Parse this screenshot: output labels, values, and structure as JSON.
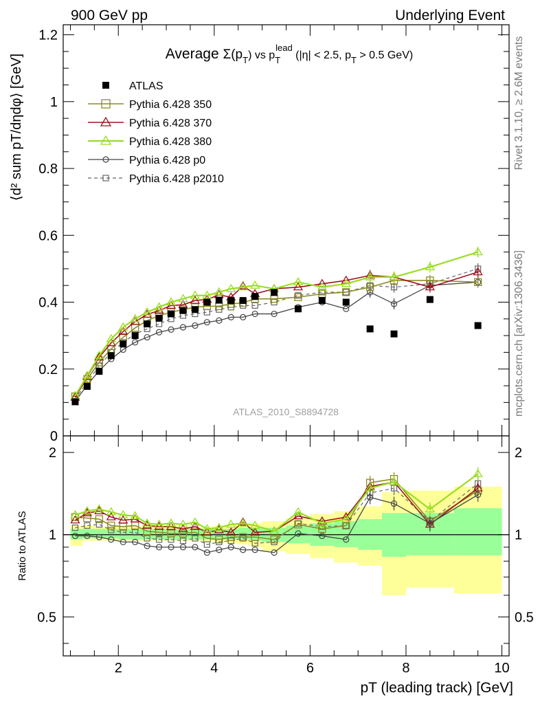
{
  "header": {
    "left": "900 GeV pp",
    "right": "Underlying Event"
  },
  "side_labels": {
    "rivet": "Rivet 3.1.10, ≥ 2.6M events",
    "mcplots": "mcplots.cern.ch [arXiv:1306.3436]"
  },
  "chart_data": [
    {
      "type": "scatter",
      "title": "Average Σ(pT) vs pT lead (|η| < 2.5, pT > 0.5 GeV)",
      "title_parts": {
        "a": "Average ",
        "b": "Σ(p",
        "c": "T",
        "d": ") vs p",
        "e": "T",
        "f": "lead",
        "g": " (|η| < 2.5, p",
        "h": "T",
        "i": " > 0.5 GeV)"
      },
      "ylabel": "⟨d² sum pT/dηdφ⟩ [GeV]",
      "xlabel": "pT (leading track) [GeV]",
      "watermark": "ATLAS_2010_S8894728",
      "xlim": [
        0.85,
        10.15
      ],
      "ylim": [
        0,
        1.23
      ],
      "y_ticks": [
        "0",
        "0.2",
        "0.4",
        "0.6",
        "0.8",
        "1",
        "1.2"
      ],
      "x_ticks": [
        "2",
        "4",
        "6",
        "8",
        "10"
      ],
      "x": [
        1.1,
        1.35,
        1.6,
        1.85,
        2.1,
        2.35,
        2.6,
        2.85,
        3.1,
        3.35,
        3.6,
        3.85,
        4.1,
        4.35,
        4.6,
        4.85,
        5.25,
        5.75,
        6.25,
        6.75,
        7.25,
        7.75,
        8.5,
        9.5
      ],
      "series": [
        {
          "name": "ATLAS",
          "values": [
            0.102,
            0.148,
            0.193,
            0.24,
            0.275,
            0.3,
            0.335,
            0.352,
            0.365,
            0.375,
            0.378,
            0.4,
            0.406,
            0.405,
            0.405,
            0.417,
            0.429,
            0.38,
            0.405,
            0.4,
            0.32,
            0.305,
            0.408,
            0.33
          ]
        },
        {
          "name": "Pythia 6.428 350",
          "values": [
            0.118,
            0.17,
            0.22,
            0.26,
            0.295,
            0.323,
            0.345,
            0.36,
            0.37,
            0.378,
            0.385,
            0.388,
            0.388,
            0.395,
            0.398,
            0.41,
            0.41,
            0.415,
            0.425,
            0.43,
            0.445,
            0.465,
            0.465,
            0.46
          ]
        },
        {
          "name": "Pythia 6.428 370",
          "values": [
            0.115,
            0.178,
            0.235,
            0.278,
            0.312,
            0.342,
            0.363,
            0.375,
            0.39,
            0.392,
            0.405,
            0.408,
            0.422,
            0.415,
            0.448,
            0.425,
            0.44,
            0.445,
            0.455,
            0.465,
            0.48,
            0.475,
            0.445,
            0.49
          ]
        },
        {
          "name": "Pythia 6.428 380",
          "values": [
            0.12,
            0.18,
            0.24,
            0.29,
            0.325,
            0.35,
            0.37,
            0.385,
            0.4,
            0.41,
            0.42,
            0.42,
            0.43,
            0.44,
            0.445,
            0.45,
            0.44,
            0.46,
            0.445,
            0.455,
            0.475,
            0.475,
            0.505,
            0.55
          ]
        },
        {
          "name": "Pythia 6.428 p0",
          "values": [
            0.103,
            0.152,
            0.195,
            0.23,
            0.258,
            0.28,
            0.295,
            0.31,
            0.318,
            0.325,
            0.33,
            0.34,
            0.345,
            0.355,
            0.355,
            0.365,
            0.365,
            0.385,
            0.4,
            0.38,
            0.43,
            0.395,
            0.45,
            0.46
          ]
        },
        {
          "name": "Pythia 6.428 p2010",
          "values": [
            0.11,
            0.16,
            0.21,
            0.25,
            0.28,
            0.305,
            0.32,
            0.335,
            0.35,
            0.36,
            0.365,
            0.37,
            0.378,
            0.385,
            0.39,
            0.39,
            0.4,
            0.42,
            0.43,
            0.43,
            0.45,
            0.445,
            0.455,
            0.5
          ]
        }
      ],
      "legend": {
        "placement": "top-left",
        "entries": [
          "ATLAS",
          "Pythia 6.428 350",
          "Pythia 6.428 370",
          "Pythia 6.428 380",
          "Pythia 6.428 p0",
          "Pythia 6.428 p2010"
        ]
      },
      "colors": {
        "ATLAS": "#000000",
        "Pythia 6.428 350": "#8b8b20",
        "Pythia 6.428 370": "#a01020",
        "Pythia 6.428 380": "#99dd22",
        "Pythia 6.428 p0": "#444444",
        "Pythia 6.428 p2010": "#666666"
      }
    },
    {
      "type": "scatter",
      "ylabel": "Ratio to ATLAS",
      "y_scale": "log",
      "ylim": [
        0.36,
        2.3
      ],
      "y_ticks": [
        "0.5",
        "1",
        "2"
      ],
      "bin_edges": [
        1.0,
        1.25,
        1.5,
        1.75,
        2.0,
        2.25,
        2.5,
        2.75,
        3.0,
        3.25,
        3.5,
        3.75,
        4.0,
        4.25,
        4.5,
        4.75,
        5.0,
        5.5,
        6.0,
        6.5,
        7.0,
        7.5,
        8.0,
        9.0,
        10.0
      ],
      "band_inner": [
        [
          0.96,
          1.05
        ],
        [
          0.97,
          1.05
        ],
        [
          0.97,
          1.05
        ],
        [
          0.97,
          1.05
        ],
        [
          0.96,
          1.05
        ],
        [
          0.96,
          1.05
        ],
        [
          0.96,
          1.05
        ],
        [
          0.96,
          1.05
        ],
        [
          0.96,
          1.05
        ],
        [
          0.96,
          1.05
        ],
        [
          0.96,
          1.05
        ],
        [
          0.96,
          1.05
        ],
        [
          0.96,
          1.05
        ],
        [
          0.96,
          1.05
        ],
        [
          0.96,
          1.06
        ],
        [
          0.95,
          1.06
        ],
        [
          0.94,
          1.06
        ],
        [
          0.93,
          1.08
        ],
        [
          0.91,
          1.1
        ],
        [
          0.9,
          1.12
        ],
        [
          0.88,
          1.14
        ],
        [
          0.83,
          1.2
        ],
        [
          0.84,
          1.2
        ],
        [
          0.84,
          1.25
        ]
      ],
      "band_outer": [
        [
          0.91,
          1.08
        ],
        [
          0.95,
          1.08
        ],
        [
          0.95,
          1.07
        ],
        [
          0.95,
          1.07
        ],
        [
          0.95,
          1.07
        ],
        [
          0.95,
          1.07
        ],
        [
          0.95,
          1.07
        ],
        [
          0.95,
          1.07
        ],
        [
          0.95,
          1.07
        ],
        [
          0.95,
          1.07
        ],
        [
          0.95,
          1.07
        ],
        [
          0.95,
          1.07
        ],
        [
          0.94,
          1.08
        ],
        [
          0.93,
          1.08
        ],
        [
          0.92,
          1.09
        ],
        [
          0.9,
          1.1
        ],
        [
          0.87,
          1.12
        ],
        [
          0.85,
          1.15
        ],
        [
          0.82,
          1.19
        ],
        [
          0.79,
          1.22
        ],
        [
          0.77,
          1.27
        ],
        [
          0.6,
          1.43
        ],
        [
          0.64,
          1.45
        ],
        [
          0.61,
          1.5
        ]
      ],
      "series": [
        {
          "name": "Pythia 6.428 350",
          "values": [
            1.16,
            1.15,
            1.14,
            1.08,
            1.07,
            1.08,
            1.03,
            1.02,
            1.01,
            1.01,
            1.02,
            0.97,
            0.96,
            0.98,
            0.98,
            0.98,
            0.96,
            1.09,
            1.05,
            1.08,
            1.55,
            1.6,
            1.12,
            1.45
          ]
        },
        {
          "name": "Pythia 6.428 370",
          "values": [
            1.13,
            1.2,
            1.22,
            1.16,
            1.13,
            1.14,
            1.08,
            1.07,
            1.07,
            1.05,
            1.07,
            1.02,
            1.04,
            1.02,
            1.11,
            1.02,
            1.03,
            1.17,
            1.12,
            1.16,
            1.5,
            1.56,
            1.09,
            1.48
          ]
        },
        {
          "name": "Pythia 6.428 380",
          "values": [
            1.18,
            1.22,
            1.24,
            1.21,
            1.18,
            1.17,
            1.1,
            1.09,
            1.1,
            1.09,
            1.11,
            1.05,
            1.06,
            1.09,
            1.1,
            1.08,
            1.03,
            1.21,
            1.1,
            1.14,
            1.48,
            1.56,
            1.24,
            1.67
          ]
        },
        {
          "name": "Pythia 6.428 p0",
          "values": [
            0.99,
            0.99,
            0.98,
            0.96,
            0.94,
            0.94,
            0.91,
            0.9,
            0.9,
            0.9,
            0.9,
            0.86,
            0.88,
            0.9,
            0.88,
            0.88,
            0.86,
            1.01,
            0.99,
            0.96,
            1.37,
            1.3,
            1.1,
            1.4
          ]
        },
        {
          "name": "Pythia 6.428 p2010",
          "values": [
            1.06,
            1.08,
            1.09,
            1.04,
            1.02,
            1.02,
            0.97,
            0.96,
            0.96,
            0.95,
            0.97,
            0.92,
            0.94,
            0.95,
            0.97,
            0.93,
            0.94,
            1.1,
            1.07,
            1.08,
            1.42,
            1.48,
            1.12,
            1.54
          ]
        }
      ]
    }
  ]
}
